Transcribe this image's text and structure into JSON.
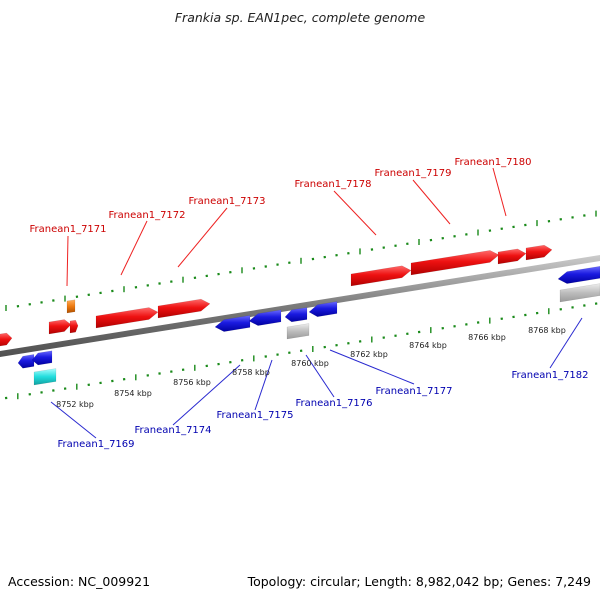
{
  "title": "Frankia sp. EAN1pec, complete genome",
  "footer": {
    "accession_label": "Accession:",
    "accession": "NC_009921",
    "topology_label": "Topology:",
    "topology": "circular",
    "length_label": "Length:",
    "length": "8,982,042 bp",
    "genes_label": "Genes:",
    "genes": "7,249"
  },
  "colors": {
    "forward_gene": "#ee1111",
    "reverse_gene": "#1a1ae0",
    "rna_gene": "#ee7a10",
    "pseudo_gene": "#bdbdbd",
    "special_gene": "#22dddd",
    "backbone": "#8a8a8a",
    "tick": "#1a8a1a",
    "forward_label": "#cc0000",
    "reverse_label": "#0000b0",
    "leader_line_forward": "#ee2222",
    "leader_line_reverse": "#2a2ad0"
  },
  "scale_labels": [
    "8752 kbp",
    "8754 kbp",
    "8756 kbp",
    "8758 kbp",
    "8760 kbp",
    "8762 kbp",
    "8764 kbp",
    "8766 kbp",
    "8768 kbp"
  ],
  "gene_labels": {
    "forward": [
      "Franean1_7171",
      "Franean1_7172",
      "Franean1_7173",
      "Franean1_7178",
      "Franean1_7179",
      "Franean1_7180"
    ],
    "reverse": [
      "Franean1_7169",
      "Franean1_7174",
      "Franean1_7175",
      "Franean1_7176",
      "Franean1_7177",
      "Franean1_7182"
    ]
  }
}
